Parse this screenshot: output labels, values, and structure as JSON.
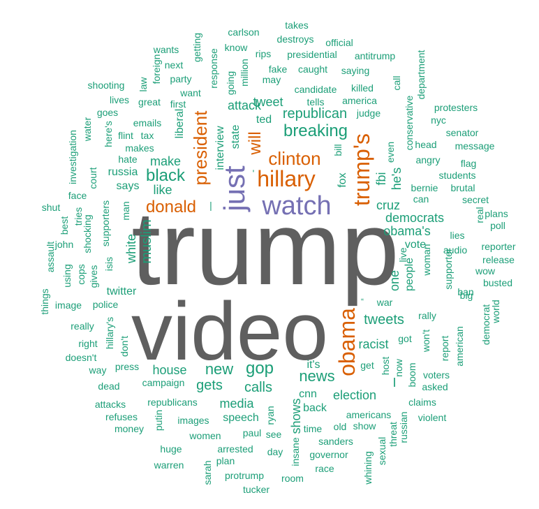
{
  "colors": {
    "dominant": "#5f5f5f",
    "purple": "#7570b3",
    "orange": "#d95f02",
    "green": "#1b9e77"
  },
  "words": [
    {
      "t": "trump",
      "c": "dominant"
    },
    {
      "t": "video",
      "c": "dominant"
    },
    {
      "t": "watch",
      "c": "purple"
    },
    {
      "t": "just",
      "c": "purple"
    },
    {
      "t": "hillary",
      "c": "orange"
    },
    {
      "t": "clinton",
      "c": "orange"
    },
    {
      "t": "donald",
      "c": "orange"
    },
    {
      "t": "trump's",
      "c": "orange"
    },
    {
      "t": "obama",
      "c": "orange"
    },
    {
      "t": "president",
      "c": "orange"
    },
    {
      "t": "will",
      "c": "orange"
    },
    {
      "t": "breaking",
      "c": "green"
    },
    {
      "t": "republican",
      "c": "green"
    },
    {
      "t": "black",
      "c": "green"
    },
    {
      "t": "make",
      "c": "green"
    },
    {
      "t": "like",
      "c": "green"
    },
    {
      "t": "muslim",
      "c": "green"
    },
    {
      "t": "white",
      "c": "green"
    },
    {
      "t": "new",
      "c": "green"
    },
    {
      "t": "gop",
      "c": "green"
    },
    {
      "t": "house",
      "c": "green"
    },
    {
      "t": "news",
      "c": "green"
    },
    {
      "t": "calls",
      "c": "green"
    },
    {
      "t": "gets",
      "c": "green"
    },
    {
      "t": "media",
      "c": "green"
    },
    {
      "t": "tweets",
      "c": "green"
    },
    {
      "t": "tweet",
      "c": "green"
    },
    {
      "t": "democrats",
      "c": "green"
    },
    {
      "t": "obama's",
      "c": "green"
    },
    {
      "t": "vote",
      "c": "green"
    },
    {
      "t": "people",
      "c": "green"
    },
    {
      "t": "one",
      "c": "green"
    },
    {
      "t": "cruz",
      "c": "green"
    },
    {
      "t": "racist",
      "c": "green"
    },
    {
      "t": "election",
      "c": "green"
    },
    {
      "t": "it's",
      "c": "green"
    },
    {
      "t": "cnn",
      "c": "green"
    },
    {
      "t": "shows",
      "c": "green"
    },
    {
      "t": "speech",
      "c": "green"
    },
    {
      "t": "back",
      "c": "green"
    },
    {
      "t": "attack",
      "c": "green"
    },
    {
      "t": "state",
      "c": "green"
    },
    {
      "t": "interview",
      "c": "green"
    },
    {
      "t": "liberal",
      "c": "green"
    },
    {
      "t": "fox",
      "c": "green"
    },
    {
      "t": "fbi",
      "c": "green"
    },
    {
      "t": "he's",
      "c": "green"
    },
    {
      "t": "bill",
      "c": "green"
    },
    {
      "t": "says",
      "c": "green"
    },
    {
      "t": "russia",
      "c": "green"
    },
    {
      "t": "twitter",
      "c": "green"
    },
    {
      "t": "police",
      "c": "green"
    },
    {
      "t": "makes",
      "c": "green"
    },
    {
      "t": "candidate",
      "c": "green"
    },
    {
      "t": "america",
      "c": "green"
    },
    {
      "t": "killed",
      "c": "green"
    },
    {
      "t": "judge",
      "c": "green"
    },
    {
      "t": "tells",
      "c": "green"
    },
    {
      "t": "caught",
      "c": "green"
    },
    {
      "t": "fake",
      "c": "green"
    },
    {
      "t": "saying",
      "c": "green"
    },
    {
      "t": "presidential",
      "c": "green"
    },
    {
      "t": "rips",
      "c": "green"
    },
    {
      "t": "destroys",
      "c": "green"
    },
    {
      "t": "carlson",
      "c": "green"
    },
    {
      "t": "know",
      "c": "green"
    },
    {
      "t": "official",
      "c": "green"
    },
    {
      "t": "takes",
      "c": "green"
    },
    {
      "t": "antitrump",
      "c": "green"
    },
    {
      "t": "wants",
      "c": "green"
    },
    {
      "t": "next",
      "c": "green"
    },
    {
      "t": "party",
      "c": "green"
    },
    {
      "t": "want",
      "c": "green"
    },
    {
      "t": "may",
      "c": "green"
    },
    {
      "t": "getting",
      "c": "green"
    },
    {
      "t": "response",
      "c": "green"
    },
    {
      "t": "going",
      "c": "green"
    },
    {
      "t": "million",
      "c": "green"
    },
    {
      "t": "ted",
      "c": "green"
    },
    {
      "t": "shooting",
      "c": "green"
    },
    {
      "t": "lives",
      "c": "green"
    },
    {
      "t": "great",
      "c": "green"
    },
    {
      "t": "first",
      "c": "green"
    },
    {
      "t": "law",
      "c": "green"
    },
    {
      "t": "foreign",
      "c": "green"
    },
    {
      "t": "goes",
      "c": "green"
    },
    {
      "t": "emails",
      "c": "green"
    },
    {
      "t": "flint",
      "c": "green"
    },
    {
      "t": "tax",
      "c": "green"
    },
    {
      "t": "hate",
      "c": "green"
    },
    {
      "t": "water",
      "c": "green"
    },
    {
      "t": "here's",
      "c": "green"
    },
    {
      "t": "investigation",
      "c": "green"
    },
    {
      "t": "court",
      "c": "green"
    },
    {
      "t": "face",
      "c": "green"
    },
    {
      "t": "tries",
      "c": "green"
    },
    {
      "t": "man",
      "c": "green"
    },
    {
      "t": "supporters",
      "c": "green"
    },
    {
      "t": "shocking",
      "c": "green"
    },
    {
      "t": "isis",
      "c": "green"
    },
    {
      "t": "gives",
      "c": "green"
    },
    {
      "t": "cops",
      "c": "green"
    },
    {
      "t": "using",
      "c": "green"
    },
    {
      "t": "john",
      "c": "green"
    },
    {
      "t": "best",
      "c": "green"
    },
    {
      "t": "shut",
      "c": "green"
    },
    {
      "t": "assault",
      "c": "green"
    },
    {
      "t": "things",
      "c": "green"
    },
    {
      "t": "image",
      "c": "green"
    },
    {
      "t": "really",
      "c": "green"
    },
    {
      "t": "right",
      "c": "green"
    },
    {
      "t": "hillary's",
      "c": "green"
    },
    {
      "t": "don't",
      "c": "green"
    },
    {
      "t": "doesn't",
      "c": "green"
    },
    {
      "t": "way",
      "c": "green"
    },
    {
      "t": "press",
      "c": "green"
    },
    {
      "t": "dead",
      "c": "green"
    },
    {
      "t": "campaign",
      "c": "green"
    },
    {
      "t": "attacks",
      "c": "green"
    },
    {
      "t": "republicans",
      "c": "green"
    },
    {
      "t": "refuses",
      "c": "green"
    },
    {
      "t": "money",
      "c": "green"
    },
    {
      "t": "putin",
      "c": "green"
    },
    {
      "t": "images",
      "c": "green"
    },
    {
      "t": "women",
      "c": "green"
    },
    {
      "t": "huge",
      "c": "green"
    },
    {
      "t": "warren",
      "c": "green"
    },
    {
      "t": "sarah",
      "c": "green"
    },
    {
      "t": "arrested",
      "c": "green"
    },
    {
      "t": "plan",
      "c": "green"
    },
    {
      "t": "protrump",
      "c": "green"
    },
    {
      "t": "tucker",
      "c": "green"
    },
    {
      "t": "paul",
      "c": "green"
    },
    {
      "t": "see",
      "c": "green"
    },
    {
      "t": "ryan",
      "c": "green"
    },
    {
      "t": "day",
      "c": "green"
    },
    {
      "t": "insane",
      "c": "green"
    },
    {
      "t": "room",
      "c": "green"
    },
    {
      "t": "race",
      "c": "green"
    },
    {
      "t": "governor",
      "c": "green"
    },
    {
      "t": "sanders",
      "c": "green"
    },
    {
      "t": "time",
      "c": "green"
    },
    {
      "t": "old",
      "c": "green"
    },
    {
      "t": "show",
      "c": "green"
    },
    {
      "t": "americans",
      "c": "green"
    },
    {
      "t": "whining",
      "c": "green"
    },
    {
      "t": "sexual",
      "c": "green"
    },
    {
      "t": "threat",
      "c": "green"
    },
    {
      "t": "russian",
      "c": "green"
    },
    {
      "t": "claims",
      "c": "green"
    },
    {
      "t": "violent",
      "c": "green"
    },
    {
      "t": "asked",
      "c": "green"
    },
    {
      "t": "voters",
      "c": "green"
    },
    {
      "t": "boom",
      "c": "green"
    },
    {
      "t": "now",
      "c": "green"
    },
    {
      "t": "host",
      "c": "green"
    },
    {
      "t": "get",
      "c": "green"
    },
    {
      "t": "got",
      "c": "green"
    },
    {
      "t": "won't",
      "c": "green"
    },
    {
      "t": "report",
      "c": "green"
    },
    {
      "t": "american",
      "c": "green"
    },
    {
      "t": "democrat",
      "c": "green"
    },
    {
      "t": "world",
      "c": "green"
    },
    {
      "t": "big",
      "c": "green"
    },
    {
      "t": "rally",
      "c": "green"
    },
    {
      "t": "war",
      "c": "green"
    },
    {
      "t": "supporter",
      "c": "green"
    },
    {
      "t": "ban",
      "c": "green"
    },
    {
      "t": "busted",
      "c": "green"
    },
    {
      "t": "wow",
      "c": "green"
    },
    {
      "t": "release",
      "c": "green"
    },
    {
      "t": "audio",
      "c": "green"
    },
    {
      "t": "reporter",
      "c": "green"
    },
    {
      "t": "woman",
      "c": "green"
    },
    {
      "t": "live",
      "c": "green"
    },
    {
      "t": "lies",
      "c": "green"
    },
    {
      "t": "plans",
      "c": "green"
    },
    {
      "t": "poll",
      "c": "green"
    },
    {
      "t": "real",
      "c": "green"
    },
    {
      "t": "can",
      "c": "green"
    },
    {
      "t": "secret",
      "c": "green"
    },
    {
      "t": "bernie",
      "c": "green"
    },
    {
      "t": "brutal",
      "c": "green"
    },
    {
      "t": "students",
      "c": "green"
    },
    {
      "t": "flag",
      "c": "green"
    },
    {
      "t": "angry",
      "c": "green"
    },
    {
      "t": "head",
      "c": "green"
    },
    {
      "t": "message",
      "c": "green"
    },
    {
      "t": "senator",
      "c": "green"
    },
    {
      "t": "nyc",
      "c": "green"
    },
    {
      "t": "protesters",
      "c": "green"
    },
    {
      "t": "department",
      "c": "green"
    },
    {
      "t": "call",
      "c": "green"
    },
    {
      "t": "conservative",
      "c": "green"
    },
    {
      "t": "even",
      "c": "green"
    },
    {
      "t": "I",
      "c": "green"
    },
    {
      "t": "'",
      "c": "green"
    },
    {
      "t": "“",
      "c": "green"
    },
    {
      "t": "|",
      "c": "green"
    }
  ]
}
